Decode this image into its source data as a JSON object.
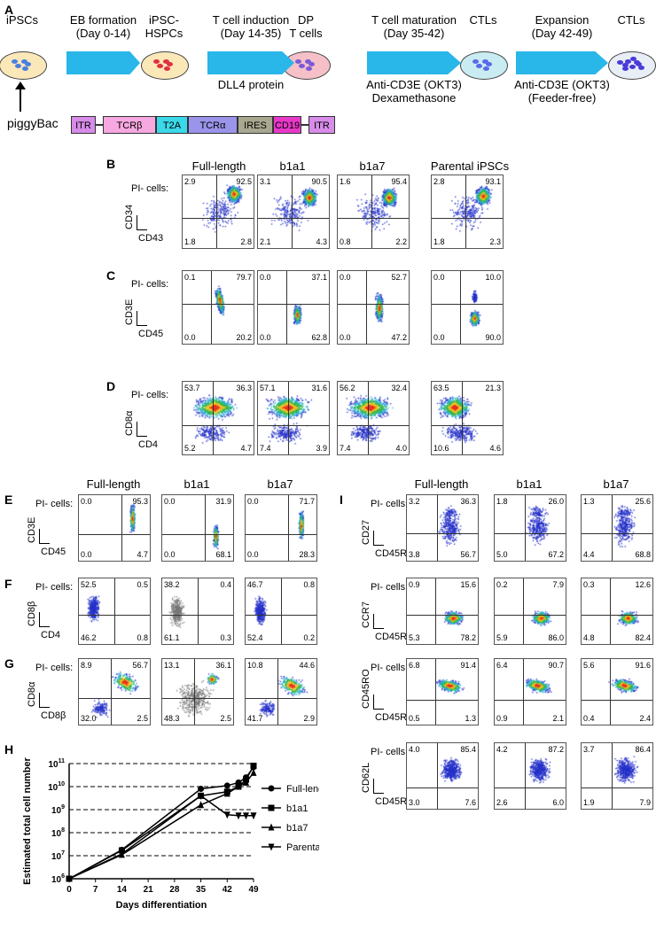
{
  "panels": {
    "A": "A",
    "B": "B",
    "C": "C",
    "D": "D",
    "E": "E",
    "F": "F",
    "G": "G",
    "H": "H",
    "I": "I"
  },
  "schematic": {
    "stages": [
      {
        "label1": "iPSCs",
        "label2": "",
        "dish": "#fbe8b8",
        "cell": "#4a7fe0"
      },
      {
        "label1": "iPSC-",
        "label2": "HSPCs",
        "dish": "#fbe8b8",
        "cell": "#e03040"
      },
      {
        "label1": "DP",
        "label2": "T cells",
        "dish": "#f6c0c8",
        "cell": "#7a5ad8"
      },
      {
        "label1": "CTLs",
        "label2": "",
        "dish": "#c8ecf2",
        "cell": "#5a6ae8"
      },
      {
        "label1": "CTLs",
        "label2": "",
        "dish": "#e8eef6",
        "cell": "#4a3ad8"
      }
    ],
    "arrows": [
      {
        "top": "EB formation",
        "mid": "(Day 0-14)",
        "below1": "",
        "below2": ""
      },
      {
        "top": "T cell induction",
        "mid": "(Day 14-35)",
        "below1": "DLL4 protein",
        "below2": ""
      },
      {
        "top": "T cell maturation",
        "mid": "(Day 35-42)",
        "below1": "Anti-CD3E (OKT3)",
        "below2": "Dexamethasone"
      },
      {
        "top": "Expansion",
        "mid": "(Day 42-49)",
        "below1": "Anti-CD3E (OKT3)",
        "below2": "(Feeder-free)"
      }
    ],
    "arrow_color": "#29b6e8",
    "vector_label": "piggyBac",
    "construct": [
      {
        "label": "ITR",
        "color": "#d68ce8"
      },
      {
        "label": "TCRβ",
        "color": "#f7a8e0"
      },
      {
        "label": "T2A",
        "color": "#3ad8e8"
      },
      {
        "label": "TCRα",
        "color": "#9a94ea"
      },
      {
        "label": "IRES",
        "color": "#a8a890"
      },
      {
        "label": "CD19",
        "color": "#e838c8"
      },
      {
        "label": "ITR",
        "color": "#d68ce8"
      }
    ]
  },
  "top_grid": {
    "columns": [
      "Full-length",
      "b1a1",
      "b1a7",
      "Parental iPSCs"
    ],
    "row_label": "PI- cells:",
    "rows": [
      {
        "panel": "B",
        "y": "CD34",
        "x": "CD43",
        "q": [
          [
            "2.9",
            "92.5",
            "1.8",
            "2.8"
          ],
          [
            "3.1",
            "90.5",
            "2.1",
            "4.3"
          ],
          [
            "1.6",
            "95.4",
            "0.8",
            "2.2"
          ],
          [
            "2.8",
            "93.1",
            "1.8",
            "2.3"
          ]
        ]
      },
      {
        "panel": "C",
        "y": "CD3E",
        "x": "CD45",
        "q": [
          [
            "0.1",
            "79.7",
            "0.0",
            "20.2"
          ],
          [
            "0.0",
            "37.1",
            "0.0",
            "62.8"
          ],
          [
            "0.0",
            "52.7",
            "0.0",
            "47.2"
          ],
          [
            "0.0",
            "10.0",
            "0.0",
            "90.0"
          ]
        ]
      },
      {
        "panel": "D",
        "y": "CD8α",
        "x": "CD4",
        "q": [
          [
            "53.7",
            "36.3",
            "5.2",
            "4.7"
          ],
          [
            "57.1",
            "31.6",
            "7.4",
            "3.9"
          ],
          [
            "56.2",
            "32.4",
            "7.4",
            "4.0"
          ],
          [
            "63.5",
            "21.3",
            "10.6",
            "4.6"
          ]
        ]
      }
    ]
  },
  "left_grid": {
    "columns": [
      "Full-length",
      "b1a1",
      "b1a7"
    ],
    "row_label": "PI- cells:",
    "rows": [
      {
        "panel": "E",
        "y": "CD3E",
        "x": "CD45",
        "q": [
          [
            "0.0",
            "95.3",
            "0.0",
            "4.7"
          ],
          [
            "0.0",
            "31.9",
            "0.0",
            "68.1"
          ],
          [
            "0.0",
            "71.7",
            "0.0",
            "28.3"
          ]
        ]
      },
      {
        "panel": "F",
        "y": "CD8β",
        "x": "CD4",
        "q": [
          [
            "52.5",
            "0.5",
            "46.2",
            "0.8"
          ],
          [
            "38.2",
            "0.4",
            "61.1",
            "0.3"
          ],
          [
            "46.7",
            "0.8",
            "52.4",
            "0.2"
          ]
        ]
      },
      {
        "panel": "G",
        "y": "CD8α",
        "x": "CD8β",
        "q": [
          [
            "8.9",
            "56.7",
            "32.0",
            "2.5"
          ],
          [
            "13.1",
            "36.1",
            "48.3",
            "2.5"
          ],
          [
            "10.8",
            "44.6",
            "41.7",
            "2.9"
          ]
        ]
      }
    ]
  },
  "right_grid": {
    "columns": [
      "Full-length",
      "b1a1",
      "b1a7"
    ],
    "row_label": "PI- cells:",
    "rows": [
      {
        "y": "CD27",
        "x": "CD45RA",
        "q": [
          [
            "3.2",
            "36.3",
            "3.8",
            "56.7"
          ],
          [
            "1.8",
            "26.0",
            "5.0",
            "67.2"
          ],
          [
            "1.3",
            "25.6",
            "4.4",
            "68.8"
          ]
        ]
      },
      {
        "y": "CCR7",
        "x": "CD45RA",
        "q": [
          [
            "0.9",
            "15.6",
            "5.3",
            "78.2"
          ],
          [
            "0.2",
            "7.9",
            "5.9",
            "86.0"
          ],
          [
            "0.3",
            "12.6",
            "4.8",
            "82.4"
          ]
        ]
      },
      {
        "y": "CD45RO",
        "x": "CD45RA",
        "q": [
          [
            "6.8",
            "91.4",
            "0.5",
            "1.3"
          ],
          [
            "6.4",
            "90.7",
            "0.9",
            "2.1"
          ],
          [
            "5.6",
            "91.6",
            "0.4",
            "2.4"
          ]
        ]
      },
      {
        "y": "CD62L",
        "x": "CD45RA",
        "q": [
          [
            "4.0",
            "85.4",
            "3.0",
            "7.6"
          ],
          [
            "4.2",
            "87.2",
            "2.6",
            "6.0"
          ],
          [
            "3.7",
            "86.4",
            "1.9",
            "7.9"
          ]
        ]
      }
    ]
  },
  "chart_data": {
    "type": "line",
    "title": "",
    "xlabel": "Days differentiation",
    "ylabel": "Estimated total cell number",
    "x_ticks": [
      0,
      7,
      14,
      21,
      28,
      35,
      42,
      49
    ],
    "y_log_range": [
      6,
      11
    ],
    "y_tick_labels": [
      "10^6",
      "10^7",
      "10^8",
      "10^9",
      "10^10",
      "10^11"
    ],
    "grid": "dashed horizontal",
    "series": [
      {
        "name": "Full-length",
        "marker": "circle",
        "x": [
          0,
          14,
          35,
          42,
          45,
          47,
          49
        ],
        "y": [
          1000000.0,
          18000000.0,
          8000000000.0,
          11000000000.0,
          15000000000.0,
          25000000000.0,
          70000000000.0
        ]
      },
      {
        "name": "b1a1",
        "marker": "square",
        "x": [
          0,
          14,
          35,
          42,
          45,
          47,
          49
        ],
        "y": [
          1000000.0,
          17000000.0,
          4000000000.0,
          6000000000.0,
          10000000000.0,
          20000000000.0,
          80000000000.0
        ]
      },
      {
        "name": "b1a7",
        "marker": "triangle-up",
        "x": [
          0,
          14,
          35,
          42,
          45,
          47,
          49
        ],
        "y": [
          1000000.0,
          11000000.0,
          1600000000.0,
          5000000000.0,
          10000000000.0,
          15000000000.0,
          40000000000.0
        ]
      },
      {
        "name": "Parental",
        "marker": "triangle-down",
        "x": [
          0,
          14,
          35,
          42,
          45,
          47,
          49
        ],
        "y": [
          1000000.0,
          12000000.0,
          4000000000.0,
          600000000.0,
          550000000.0,
          550000000.0,
          550000000.0
        ]
      }
    ]
  }
}
